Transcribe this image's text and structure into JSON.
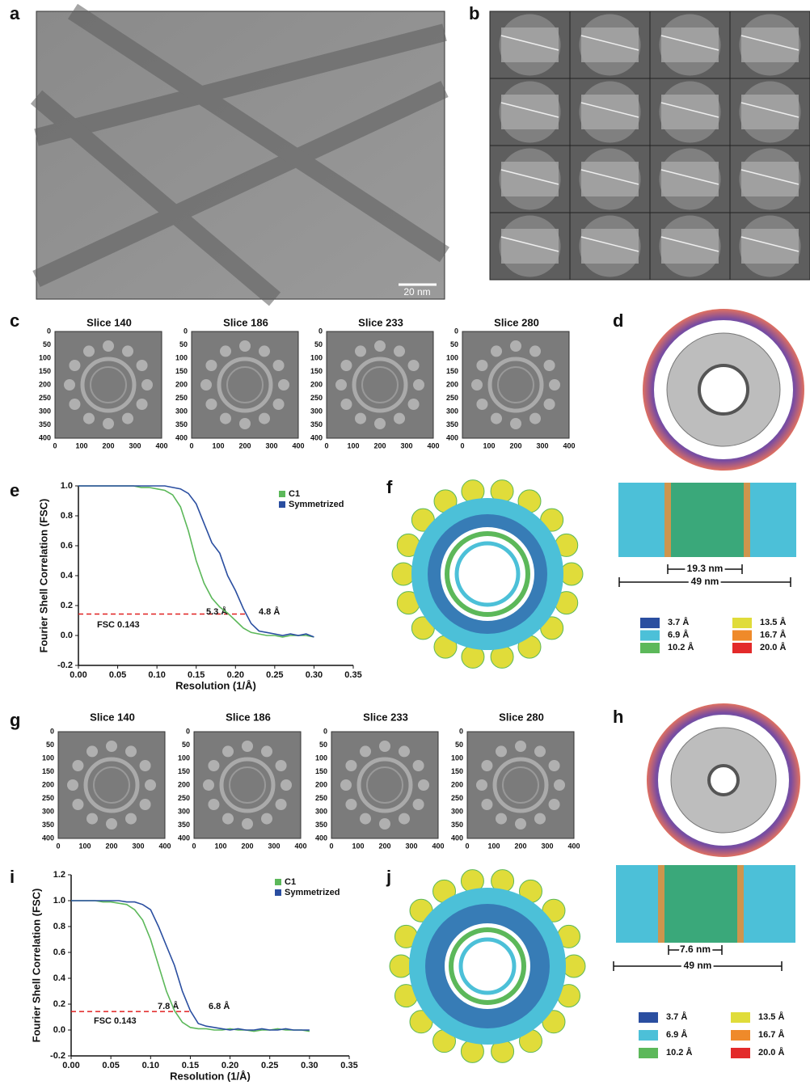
{
  "panel_labels": [
    "a",
    "b",
    "c",
    "d",
    "e",
    "f",
    "g",
    "h",
    "i",
    "j"
  ],
  "micrograph": {
    "scale_bar": "20 nm"
  },
  "slices": {
    "titles": [
      "Slice 140",
      "Slice 186",
      "Slice 233",
      "Slice 280"
    ],
    "yticks": [
      0,
      50,
      100,
      150,
      200,
      250,
      300,
      350,
      400
    ],
    "xticks": [
      0,
      100,
      200,
      300,
      400
    ]
  },
  "dimensions": [
    {
      "inner": "19.3 nm",
      "outer": "49 nm"
    },
    {
      "inner": "7.6 nm",
      "outer": "49 nm"
    }
  ],
  "resolution_legend": [
    {
      "label": "3.7 Å",
      "color": "#2a4ea0"
    },
    {
      "label": "6.9 Å",
      "color": "#4cc0d8"
    },
    {
      "label": "10.2 Å",
      "color": "#5cb85a"
    },
    {
      "label": "13.5 Å",
      "color": "#e0dc3a"
    },
    {
      "label": "16.7 Å",
      "color": "#ef8a2a"
    },
    {
      "label": "20.0 Å",
      "color": "#e32a2a"
    }
  ],
  "chart_data": [
    {
      "type": "line",
      "xlabel": "Resolution (1/Å)",
      "ylabel": "Fourier Shell Correlation (FSC)",
      "x": [
        0,
        0.01,
        0.02,
        0.03,
        0.04,
        0.05,
        0.06,
        0.07,
        0.08,
        0.09,
        0.1,
        0.11,
        0.12,
        0.13,
        0.14,
        0.15,
        0.16,
        0.17,
        0.18,
        0.19,
        0.2,
        0.21,
        0.22,
        0.23,
        0.24,
        0.25,
        0.26,
        0.27,
        0.28,
        0.29,
        0.3
      ],
      "xlim": [
        0,
        0.35
      ],
      "xticks": [
        {
          "value": 0,
          "label": "0.00"
        },
        {
          "value": 0.05,
          "label": "0.05"
        },
        {
          "value": 0.1,
          "label": "0.10"
        },
        {
          "value": 0.15,
          "label": "0.15"
        },
        {
          "value": 0.2,
          "label": "0.20"
        },
        {
          "value": 0.25,
          "label": "0.25"
        },
        {
          "value": 0.3,
          "label": "0.30"
        },
        {
          "value": 0.35,
          "label": "0.35"
        }
      ],
      "ylim": [
        -0.2,
        1.0
      ],
      "yticks": [
        -0.2,
        {
          "value": 0,
          "label": "0.0"
        },
        0.2,
        0.4,
        0.6,
        0.8,
        {
          "value": 1,
          "label": "1.0"
        }
      ],
      "series": [
        {
          "name": "C1",
          "color": "#5cb85a",
          "values": [
            1,
            1,
            1,
            1,
            1,
            1,
            1,
            1,
            0.99,
            0.99,
            0.98,
            0.97,
            0.94,
            0.86,
            0.7,
            0.5,
            0.35,
            0.25,
            0.19,
            0.15,
            0.1,
            0.05,
            0.02,
            0.01,
            0,
            0,
            -0.01,
            0,
            0,
            0,
            -0.01
          ]
        },
        {
          "name": "Symmetrized",
          "color": "#2a4ea0",
          "values": [
            1,
            1,
            1,
            1,
            1,
            1,
            1,
            1,
            1,
            1,
            1,
            1,
            0.99,
            0.98,
            0.95,
            0.88,
            0.75,
            0.62,
            0.55,
            0.4,
            0.3,
            0.18,
            0.08,
            0.03,
            0.02,
            0.01,
            0,
            0.01,
            0,
            0.01,
            -0.01
          ]
        }
      ],
      "threshold": {
        "value": 0.143,
        "label": "FSC 0.143",
        "color": "#e02020"
      },
      "annotations": [
        "5.3 Å",
        "4.8 Å"
      ]
    },
    {
      "type": "line",
      "xlabel": "Resolution (1/Å)",
      "ylabel": "Fourier Shell Correlation (FSC)",
      "x": [
        0,
        0.01,
        0.02,
        0.03,
        0.04,
        0.05,
        0.06,
        0.07,
        0.08,
        0.09,
        0.1,
        0.11,
        0.12,
        0.13,
        0.14,
        0.15,
        0.16,
        0.17,
        0.18,
        0.19,
        0.2,
        0.21,
        0.22,
        0.23,
        0.24,
        0.25,
        0.26,
        0.27,
        0.28,
        0.29,
        0.3
      ],
      "xlim": [
        0,
        0.35
      ],
      "xticks": [
        {
          "value": 0,
          "label": "0.00"
        },
        {
          "value": 0.05,
          "label": "0.05"
        },
        {
          "value": 0.1,
          "label": "0.10"
        },
        {
          "value": 0.15,
          "label": "0.15"
        },
        {
          "value": 0.2,
          "label": "0.20"
        },
        {
          "value": 0.25,
          "label": "0.25"
        },
        {
          "value": 0.3,
          "label": "0.30"
        },
        {
          "value": 0.35,
          "label": "0.35"
        }
      ],
      "ylim": [
        -0.2,
        1.2
      ],
      "yticks": [
        -0.2,
        {
          "value": 0,
          "label": "0.0"
        },
        0.2,
        0.4,
        0.6,
        0.8,
        {
          "value": 1,
          "label": "1.0"
        },
        1.2
      ],
      "series": [
        {
          "name": "C1",
          "color": "#5cb85a",
          "values": [
            1,
            1,
            1,
            1,
            0.99,
            0.99,
            0.98,
            0.97,
            0.93,
            0.85,
            0.7,
            0.5,
            0.3,
            0.15,
            0.06,
            0.02,
            0.01,
            0.01,
            0,
            0,
            0.01,
            0,
            0,
            -0.01,
            0,
            0,
            0.01,
            0,
            0,
            0,
            -0.01
          ]
        },
        {
          "name": "Symmetrized",
          "color": "#2a4ea0",
          "values": [
            1,
            1,
            1,
            1,
            1,
            1,
            1,
            0.99,
            0.99,
            0.97,
            0.93,
            0.8,
            0.65,
            0.5,
            0.3,
            0.15,
            0.05,
            0.03,
            0.02,
            0.01,
            0,
            0.01,
            0,
            0,
            0.01,
            0,
            0,
            0.01,
            0,
            0,
            0
          ]
        }
      ],
      "threshold": {
        "value": 0.143,
        "label": "FSC 0.143",
        "color": "#e02020"
      },
      "annotations": [
        "7.8 Å",
        "6.8 Å"
      ]
    }
  ]
}
